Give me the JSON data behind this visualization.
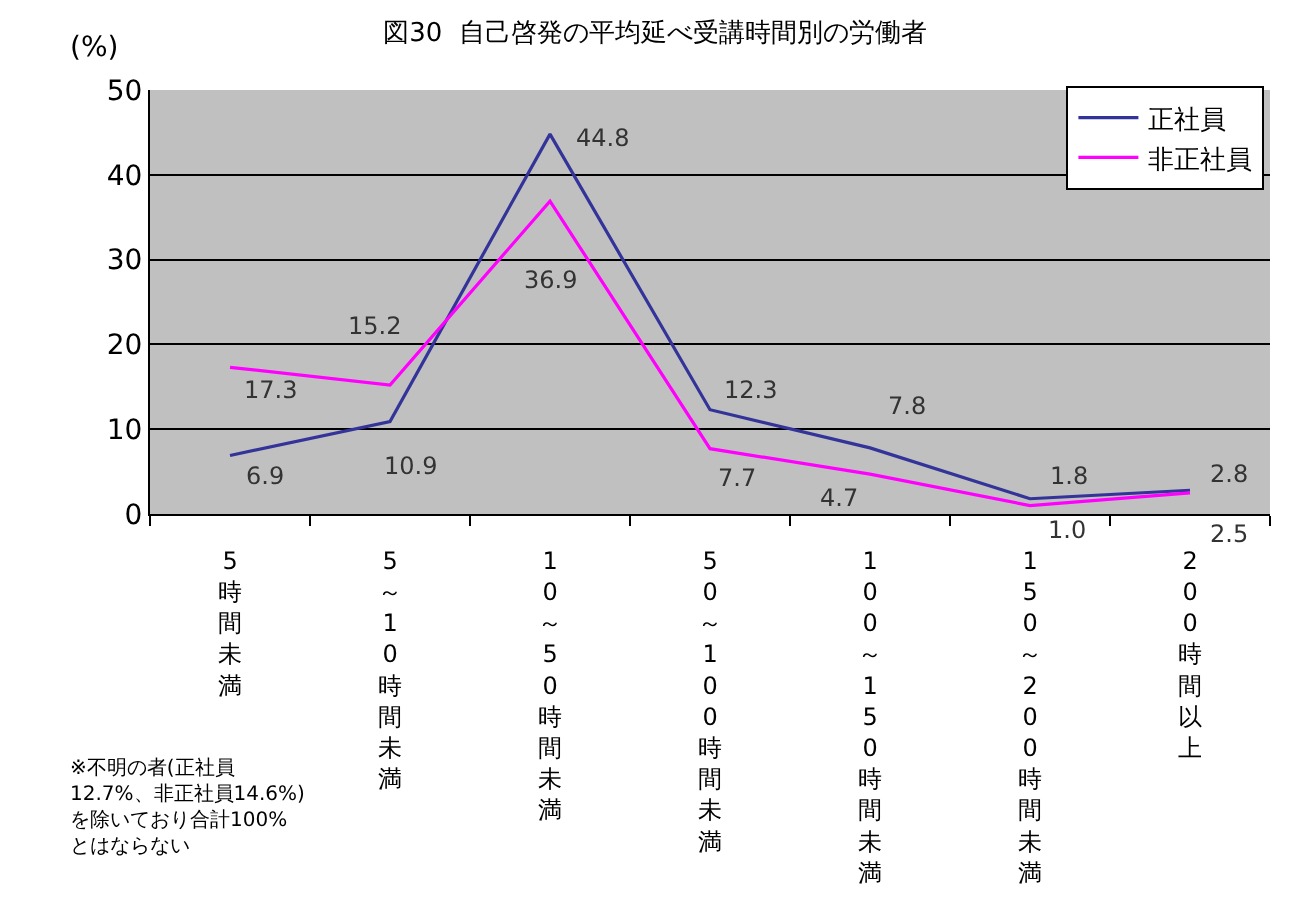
{
  "chart_data": {
    "type": "line",
    "title": "図30  自己啓発の平均延べ受講時間別の労働者",
    "ylabel": "(%)",
    "categories": [
      "5時間未満",
      "5～10時間未満",
      "10～50時間未満",
      "50～100時間未満",
      "100～150時間未満",
      "150～200時間未満",
      "200時間以上"
    ],
    "series": [
      {
        "name": "正社員",
        "color": "#333399",
        "values": [
          6.9,
          10.9,
          44.8,
          12.3,
          7.8,
          1.8,
          2.8
        ],
        "value_labels": [
          "6.9",
          "10.9",
          "44.8",
          "12.3",
          "7.8",
          "1.8",
          "2.8"
        ]
      },
      {
        "name": "非正社員",
        "color": "#ff00ff",
        "values": [
          17.3,
          15.2,
          36.9,
          7.7,
          4.7,
          1.0,
          2.5
        ],
        "value_labels": [
          "17.3",
          "15.2",
          "36.9",
          "7.7",
          "4.7",
          "1.0",
          "2.5"
        ]
      }
    ],
    "ylim": [
      0,
      50
    ],
    "yticks": [
      0,
      10,
      20,
      30,
      40,
      50
    ],
    "grid": "y",
    "legend": "top right",
    "marker": "none",
    "line_style": "solid",
    "annotations": [
      "※不明の者(正社員12.7%、非正社員14.6%)を除いており合計100%とはならない"
    ]
  }
}
